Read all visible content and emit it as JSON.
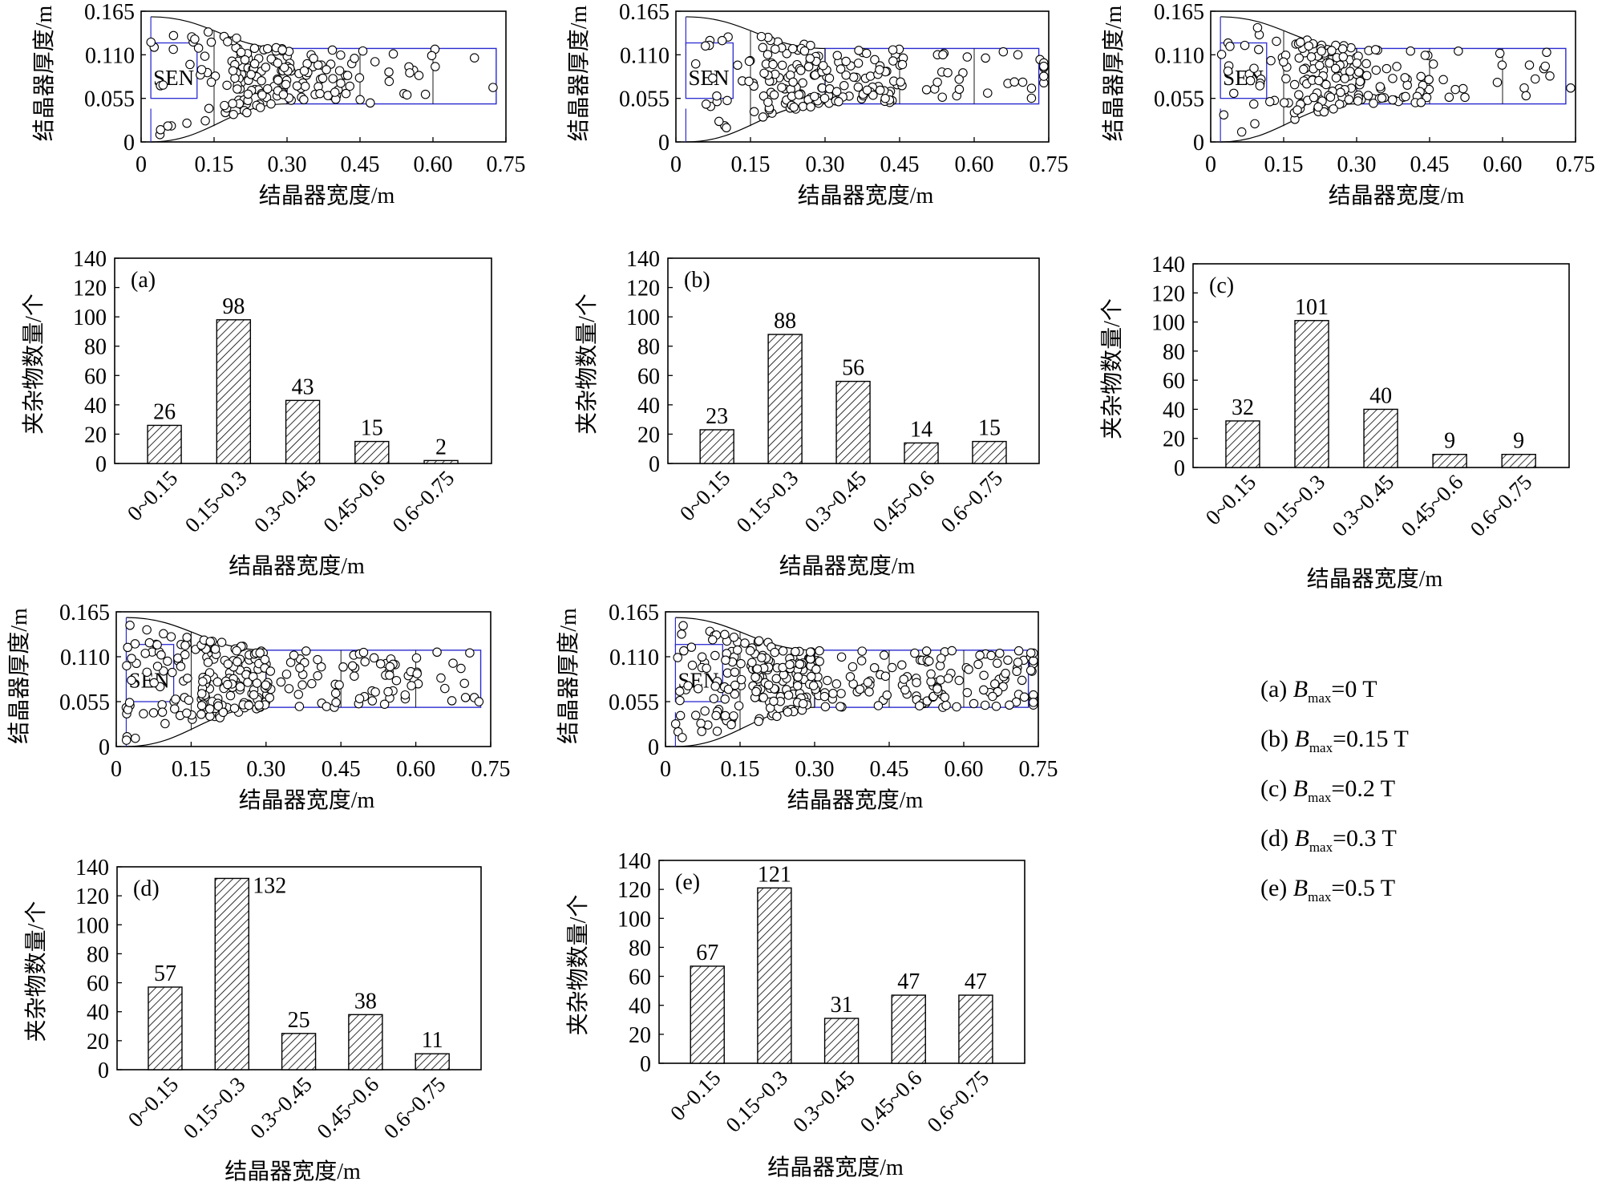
{
  "axis_labels": {
    "width_label": "结晶器宽度/m",
    "thickness_label": "结晶器厚度/m",
    "count_label": "夹杂物数量/个"
  },
  "nozzle_label": "SEN",
  "legend": [
    {
      "tag": "(a)",
      "symbol": "B",
      "sub": "max",
      "value": "=0 T"
    },
    {
      "tag": "(b)",
      "symbol": "B",
      "sub": "max",
      "value": "=0.15 T"
    },
    {
      "tag": "(c)",
      "symbol": "B",
      "sub": "max",
      "value": "=0.2 T"
    },
    {
      "tag": "(d)",
      "symbol": "B",
      "sub": "max",
      "value": "=0.3 T"
    },
    {
      "tag": "(e)",
      "symbol": "B",
      "sub": "max",
      "value": "=0.5 T"
    }
  ],
  "chart_data": [
    {
      "type": "scatter",
      "panel": "a",
      "xlabel": "结晶器宽度/m",
      "ylabel": "结晶器厚度/m",
      "xticks": [
        "0",
        "0.15",
        "0.30",
        "0.45",
        "0.60",
        "0.75"
      ],
      "yticks": [
        "0",
        "0.055",
        "0.110",
        "0.165"
      ],
      "xlim": [
        0,
        0.75
      ],
      "ylim": [
        0,
        0.165
      ],
      "point_count": 184,
      "note_points": "individual inclusion positions; distribution summarized by histogram (a)"
    },
    {
      "type": "scatter",
      "panel": "b",
      "xlabel": "结晶器宽度/m",
      "ylabel": "结晶器厚度/m",
      "xticks": [
        "0",
        "0.15",
        "0.30",
        "0.45",
        "0.60",
        "0.75"
      ],
      "yticks": [
        "0",
        "0.055",
        "0.110",
        "0.165"
      ],
      "xlim": [
        0,
        0.75
      ],
      "ylim": [
        0,
        0.165
      ],
      "point_count": 196
    },
    {
      "type": "scatter",
      "panel": "c",
      "xlabel": "结晶器宽度/m",
      "ylabel": "结晶器厚度/m",
      "xticks": [
        "0",
        "0.15",
        "0.30",
        "0.45",
        "0.60",
        "0.75"
      ],
      "yticks": [
        "0",
        "0.055",
        "0.110",
        "0.165"
      ],
      "xlim": [
        0,
        0.75
      ],
      "ylim": [
        0,
        0.165
      ],
      "point_count": 191
    },
    {
      "type": "scatter",
      "panel": "d",
      "xlabel": "结晶器宽度/m",
      "ylabel": "结晶器厚度/m",
      "xticks": [
        "0",
        "0.15",
        "0.30",
        "0.45",
        "0.60",
        "0.75"
      ],
      "yticks": [
        "0",
        "0.055",
        "0.110",
        "0.165"
      ],
      "xlim": [
        0,
        0.75
      ],
      "ylim": [
        0,
        0.165
      ],
      "point_count": 263
    },
    {
      "type": "scatter",
      "panel": "e",
      "xlabel": "结晶器宽度/m",
      "ylabel": "结晶器厚度/m",
      "xticks": [
        "0",
        "0.15",
        "0.30",
        "0.45",
        "0.60",
        "0.75"
      ],
      "yticks": [
        "0",
        "0.055",
        "0.110",
        "0.165"
      ],
      "xlim": [
        0,
        0.75
      ],
      "ylim": [
        0,
        0.165
      ],
      "point_count": 313
    },
    {
      "type": "bar",
      "panel": "a",
      "label": "(a)",
      "xlabel": "结晶器宽度/m",
      "ylabel": "夹杂物数量/个",
      "categories": [
        "0~0.15",
        "0.15~0.3",
        "0.3~0.45",
        "0.45~0.6",
        "0.6~0.75"
      ],
      "values": [
        26,
        98,
        43,
        15,
        2
      ],
      "ylim": [
        0,
        140
      ],
      "yticks": [
        "0",
        "20",
        "40",
        "60",
        "80",
        "100",
        "120",
        "140"
      ]
    },
    {
      "type": "bar",
      "panel": "b",
      "label": "(b)",
      "xlabel": "结晶器宽度/m",
      "ylabel": "夹杂物数量/个",
      "categories": [
        "0~0.15",
        "0.15~0.3",
        "0.3~0.45",
        "0.45~0.6",
        "0.6~0.75"
      ],
      "values": [
        23,
        88,
        56,
        14,
        15
      ],
      "ylim": [
        0,
        140
      ],
      "yticks": [
        "0",
        "20",
        "40",
        "60",
        "80",
        "100",
        "120",
        "140"
      ]
    },
    {
      "type": "bar",
      "panel": "c",
      "label": "(c)",
      "xlabel": "结晶器宽度/m",
      "ylabel": "夹杂物数量/个",
      "categories": [
        "0~0.15",
        "0.15~0.3",
        "0.3~0.45",
        "0.45~0.6",
        "0.6~0.75"
      ],
      "values": [
        32,
        101,
        40,
        9,
        9
      ],
      "ylim": [
        0,
        140
      ],
      "yticks": [
        "0",
        "20",
        "40",
        "60",
        "80",
        "100",
        "120",
        "140"
      ]
    },
    {
      "type": "bar",
      "panel": "d",
      "label": "(d)",
      "xlabel": "结晶器宽度/m",
      "ylabel": "夹杂物数量/个",
      "categories": [
        "0~0.15",
        "0.15~0.3",
        "0.3~0.45",
        "0.45~0.6",
        "0.6~0.75"
      ],
      "values": [
        57,
        132,
        25,
        38,
        11
      ],
      "ylim": [
        0,
        140
      ],
      "yticks": [
        "0",
        "20",
        "40",
        "60",
        "80",
        "100",
        "120",
        "140"
      ]
    },
    {
      "type": "bar",
      "panel": "e",
      "label": "(e)",
      "xlabel": "结晶器宽度/m",
      "ylabel": "夹杂物数量/个",
      "categories": [
        "0~0.15",
        "0.15~0.3",
        "0.3~0.45",
        "0.45~0.6",
        "0.6~0.75"
      ],
      "values": [
        67,
        121,
        31,
        47,
        47
      ],
      "ylim": [
        0,
        140
      ],
      "yticks": [
        "0",
        "20",
        "40",
        "60",
        "80",
        "100",
        "120",
        "140"
      ]
    }
  ]
}
